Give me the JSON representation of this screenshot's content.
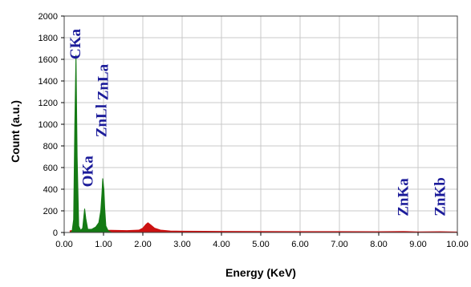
{
  "chart_data": {
    "type": "area",
    "xlabel": "Energy (KeV)",
    "ylabel": "Count (a.u.)",
    "xlim": [
      0,
      10
    ],
    "ylim": [
      0,
      2000
    ],
    "x_ticks": [
      0,
      1,
      2,
      3,
      4,
      5,
      6,
      7,
      8,
      9,
      10
    ],
    "x_tick_labels": [
      "0.00",
      "1.00",
      "2.00",
      "3.00",
      "4.00",
      "5.00",
      "6.00",
      "7.00",
      "8.00",
      "9.00",
      "10.00"
    ],
    "y_ticks": [
      0,
      200,
      400,
      600,
      800,
      1000,
      1200,
      1400,
      1600,
      1800,
      2000
    ],
    "grid": true,
    "series": [
      {
        "color": "#147a14",
        "x": [
          0.15,
          0.2,
          0.24,
          0.27,
          0.3,
          0.33,
          0.37,
          0.42,
          0.47,
          0.5,
          0.52,
          0.55,
          0.6,
          0.7,
          0.8,
          0.88,
          0.93,
          0.96,
          0.98,
          1.01,
          1.03,
          1.06,
          1.12,
          1.2
        ],
        "y": [
          0,
          10,
          120,
          1000,
          1640,
          700,
          60,
          20,
          40,
          150,
          220,
          130,
          30,
          30,
          50,
          90,
          200,
          360,
          500,
          400,
          230,
          60,
          15,
          0
        ]
      },
      {
        "color": "#cc1111",
        "x": [
          0.15,
          0.3,
          0.5,
          0.8,
          1.2,
          1.6,
          1.9,
          2.0,
          2.08,
          2.13,
          2.2,
          2.3,
          2.45,
          2.7,
          3.0,
          4.0,
          5.0,
          6.0,
          7.0,
          8.0,
          8.63,
          9.0,
          9.57,
          10.0
        ],
        "y": [
          15,
          25,
          22,
          20,
          20,
          18,
          22,
          40,
          75,
          90,
          70,
          40,
          22,
          14,
          12,
          10,
          9,
          8,
          8,
          7,
          9,
          6,
          7,
          5
        ]
      }
    ],
    "annotations": [
      {
        "text": "CKa",
        "x": 0.3,
        "y": 1600
      },
      {
        "text": "ZnLa",
        "x": 1.0,
        "y": 1220
      },
      {
        "text": "ZnLl",
        "x": 0.96,
        "y": 880
      },
      {
        "text": "OKa",
        "x": 0.61,
        "y": 420
      },
      {
        "text": "ZnKa",
        "x": 8.63,
        "y": 150
      },
      {
        "text": "ZnKb",
        "x": 9.57,
        "y": 150
      }
    ]
  }
}
